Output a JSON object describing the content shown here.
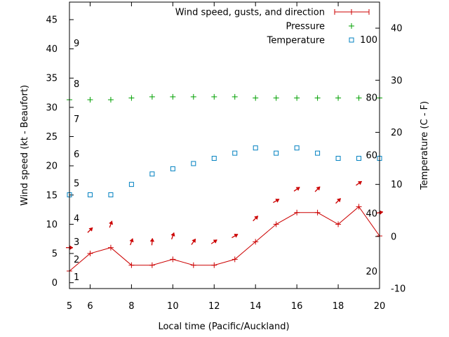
{
  "chart_data": {
    "type": "line",
    "xlabel": "Local time (Pacific/Auckland)",
    "ylabel_left": "Wind speed (kt - Beaufort)",
    "ylabel_right": "Temperature (C - F)",
    "xlim": [
      5,
      20
    ],
    "ylim_left": [
      -1,
      48
    ],
    "ylim_right": [
      -10,
      45
    ],
    "x_ticks": [
      6,
      8,
      10,
      12,
      14,
      16,
      18,
      20
    ],
    "y_left_ticks": [
      0,
      5,
      10,
      15,
      20,
      25,
      30,
      35,
      40,
      45
    ],
    "y_right_ticks": [
      -10,
      0,
      10,
      20,
      30,
      40
    ],
    "beaufort_labels": [
      {
        "text": "1",
        "y": 1
      },
      {
        "text": "2",
        "y": 4
      },
      {
        "text": "3",
        "y": 7
      },
      {
        "text": "4",
        "y": 11
      },
      {
        "text": "5",
        "y": 17
      },
      {
        "text": "6",
        "y": 22
      },
      {
        "text": "7",
        "y": 28
      },
      {
        "text": "8",
        "y": 34
      },
      {
        "text": "9",
        "y": 41
      }
    ],
    "fahrenheit_labels": [
      {
        "text": "20",
        "y": -6.7
      },
      {
        "text": "40",
        "y": 4.4
      },
      {
        "text": "60",
        "y": 15.6
      },
      {
        "text": "80",
        "y": 26.7
      },
      {
        "text": "100",
        "y": 37.8
      }
    ],
    "legend": {
      "placement": "top-right"
    },
    "series": [
      {
        "name": "Wind speed, gusts, and direction",
        "color": "#cc0000",
        "marker": "plus",
        "x": [
          5,
          6,
          7,
          8,
          9,
          10,
          11,
          12,
          13,
          14,
          15,
          16,
          17,
          18,
          19,
          20
        ],
        "y": [
          2,
          5,
          6,
          3,
          3,
          4,
          3,
          3,
          4,
          7,
          10,
          12,
          12,
          10,
          13,
          8
        ]
      },
      {
        "name": "Pressure",
        "color": "#00a000",
        "marker": "plus",
        "x": [
          5,
          6,
          7,
          8,
          9,
          10,
          11,
          12,
          13,
          14,
          15,
          16,
          17,
          18,
          19,
          20
        ],
        "y": [
          31.3,
          31.3,
          31.3,
          31.6,
          31.8,
          31.8,
          31.8,
          31.8,
          31.8,
          31.6,
          31.6,
          31.6,
          31.6,
          31.6,
          31.6,
          31.6
        ]
      },
      {
        "name": "Temperature",
        "color": "#0080c0",
        "marker": "square",
        "axis": "right",
        "x": [
          5,
          6,
          7,
          8,
          9,
          10,
          11,
          12,
          13,
          14,
          15,
          16,
          17,
          18,
          19,
          20
        ],
        "y": [
          8,
          8,
          8,
          10,
          12,
          13,
          14,
          15,
          16,
          17,
          16,
          17,
          16,
          15,
          15,
          15
        ]
      }
    ],
    "wind_direction_arrows": {
      "color": "#cc0000",
      "x": [
        5,
        6,
        7,
        8,
        9,
        10,
        11,
        12,
        13,
        14,
        15,
        16,
        17,
        18,
        19,
        20
      ],
      "y": [
        6,
        9,
        10,
        7,
        7,
        8,
        7,
        7,
        8,
        11,
        14,
        16,
        16,
        14,
        17,
        12
      ],
      "angle_deg": [
        90,
        45,
        20,
        20,
        5,
        20,
        35,
        55,
        60,
        45,
        60,
        55,
        45,
        45,
        55,
        80
      ]
    }
  }
}
